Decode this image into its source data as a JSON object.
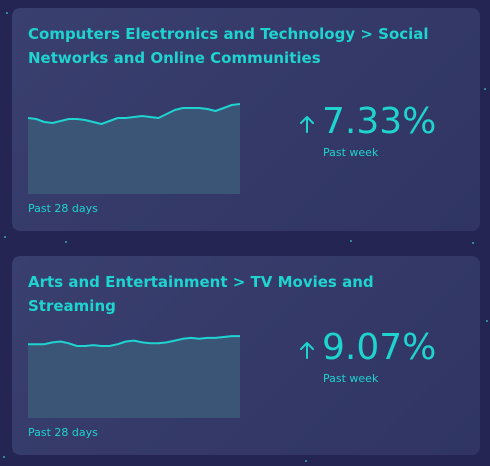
{
  "colors": {
    "background": "#242552",
    "card": "#373c6b",
    "accent": "#1fd3cf",
    "sparkline_fill": "#3b5577"
  },
  "cards": [
    {
      "title": "Computers Electronics and Technology > Social Networks and Online Communities",
      "range_label": "Past 28 days",
      "change_icon": "arrow-up-icon",
      "change_value": "7.33%",
      "change_period": "Past week",
      "trend": [
        76,
        75,
        72,
        71,
        73,
        75,
        75,
        74,
        72,
        70,
        73,
        76,
        76,
        77,
        78,
        77,
        76,
        80,
        84,
        86,
        86,
        86,
        85,
        83,
        86,
        89,
        90
      ]
    },
    {
      "title": "Arts and Entertainment > TV Movies and Streaming",
      "range_label": "Past 28 days",
      "change_icon": "arrow-up-icon",
      "change_value": "9.07%",
      "change_period": "Past week",
      "trend": [
        82,
        82,
        82,
        84,
        85,
        83,
        80,
        80,
        81,
        80,
        80,
        82,
        85,
        86,
        84,
        83,
        83,
        84,
        86,
        88,
        89,
        88,
        89,
        89,
        90,
        91,
        91
      ]
    }
  ]
}
